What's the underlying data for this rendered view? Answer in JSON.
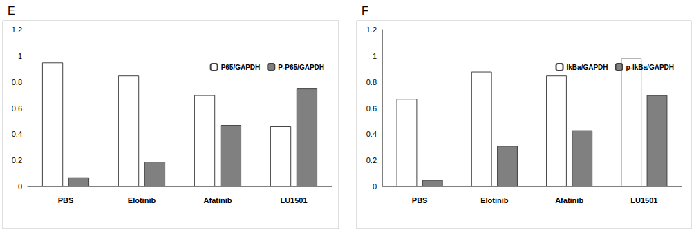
{
  "chart_data": [
    {
      "type": "bar",
      "title": "E",
      "categories": [
        "PBS",
        "Elotinib",
        "Afatinib",
        "LU1501"
      ],
      "series": [
        {
          "name": "P65/GAPDH",
          "color": "#ffffff",
          "values": [
            0.95,
            0.85,
            0.7,
            0.46
          ]
        },
        {
          "name": "P-P65/GAPDH",
          "color": "#808080",
          "values": [
            0.07,
            0.19,
            0.47,
            0.75
          ]
        }
      ],
      "ylim": [
        0,
        1.2
      ],
      "yticks": [
        0,
        0.2,
        0.4,
        0.6,
        0.8,
        1,
        1.2
      ],
      "grid": false,
      "legend": "upper right"
    },
    {
      "type": "bar",
      "title": "F",
      "categories": [
        "PBS",
        "Elotinib",
        "Afatinib",
        "LU1501"
      ],
      "series": [
        {
          "name": "IkBa/GAPDH",
          "color": "#ffffff",
          "values": [
            0.67,
            0.88,
            0.85,
            0.98
          ]
        },
        {
          "name": "p-IkBa/GAPDH",
          "color": "#808080",
          "values": [
            0.05,
            0.31,
            0.43,
            0.7
          ]
        }
      ],
      "ylim": [
        0,
        1.2
      ],
      "yticks": [
        0,
        0.2,
        0.4,
        0.6,
        0.8,
        1,
        1.2
      ],
      "grid": false,
      "legend": "upper right"
    }
  ]
}
